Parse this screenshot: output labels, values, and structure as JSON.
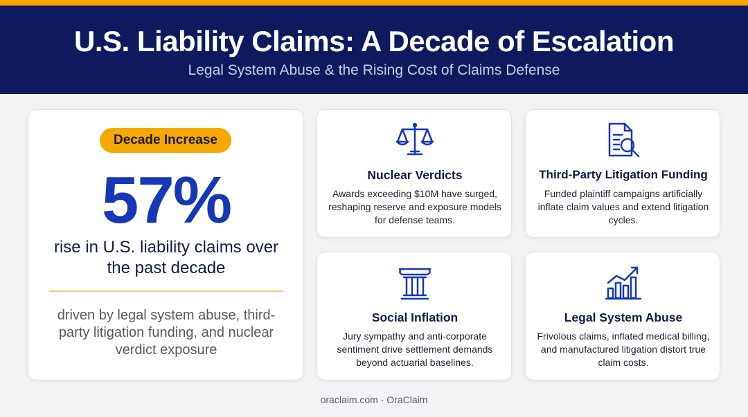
{
  "header": {
    "title": "U.S. Liability Claims: A Decade of Escalation",
    "subtitle": "Legal System Abuse & the Rising Cost of Claims Defense"
  },
  "hero": {
    "badge": "Decade Increase",
    "stat": "57%",
    "caption": "rise in U.S. liability claims over the past decade",
    "drivers": "driven by legal system abuse, third-party litigation funding, and nuclear verdict exposure"
  },
  "features": [
    {
      "icon": "scales-icon",
      "title": "Nuclear Verdicts",
      "description": "Awards exceeding $10M have surged, reshaping reserve and exposure models for defense teams."
    },
    {
      "icon": "document-search-icon",
      "title": "Third-Party Litigation Funding",
      "description": "Funded plaintiff campaigns artificially inflate claim values and extend litigation cycles."
    },
    {
      "icon": "column-icon",
      "title": "Social Inflation",
      "description": "Jury sympathy and anti-corporate sentiment drive settlement demands beyond actuarial baselines."
    },
    {
      "icon": "rising-bar-chart-icon",
      "title": "Legal System Abuse",
      "description": "Frivolous claims, inflated medical billing, and manufactured litigation distort true claim costs."
    }
  ],
  "footer": "oraclaim.com · OraClaim",
  "colors": {
    "navy": "#0d1b5e",
    "accent": "#f5a800",
    "blue": "#1537b8"
  }
}
